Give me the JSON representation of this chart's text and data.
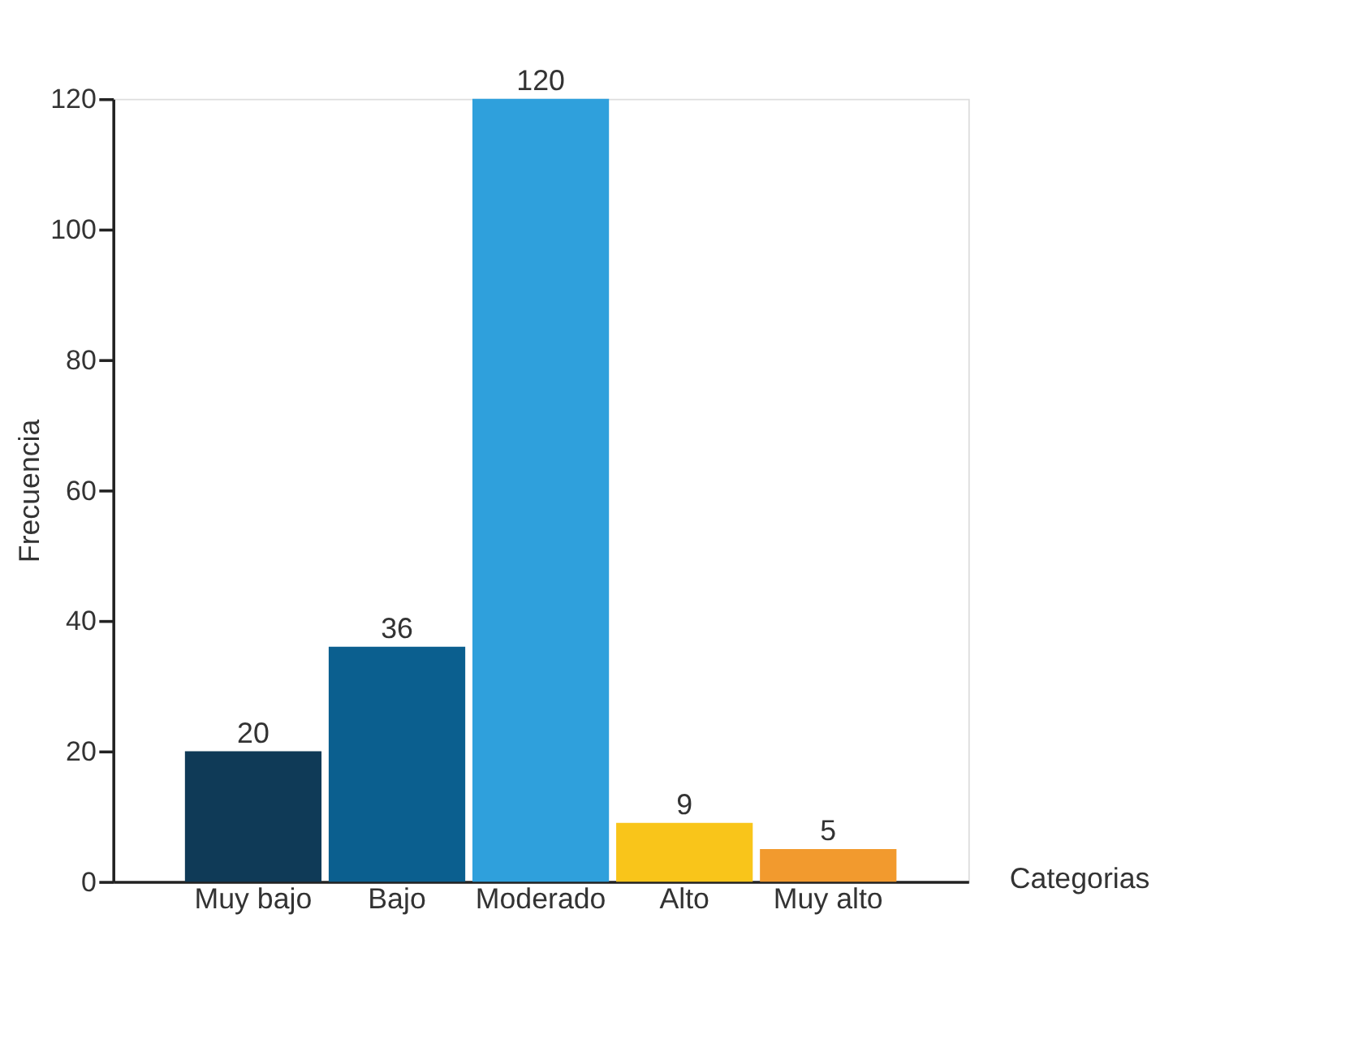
{
  "chart_data": {
    "type": "bar",
    "xlabel": "Categorias",
    "ylabel": "Frecuencia",
    "categories": [
      "Muy bajo",
      "Bajo",
      "Moderado",
      "Alto",
      "Muy alto"
    ],
    "values": [
      20,
      36,
      120,
      9,
      5
    ],
    "colors": [
      "#0f3a57",
      "#0b5f8f",
      "#2fa0dc",
      "#f9c51a",
      "#f29a2e"
    ],
    "ylim": [
      0,
      120
    ],
    "yticks": [
      0,
      20,
      40,
      60,
      80,
      100,
      120
    ],
    "grid": false,
    "data_labels": true
  }
}
